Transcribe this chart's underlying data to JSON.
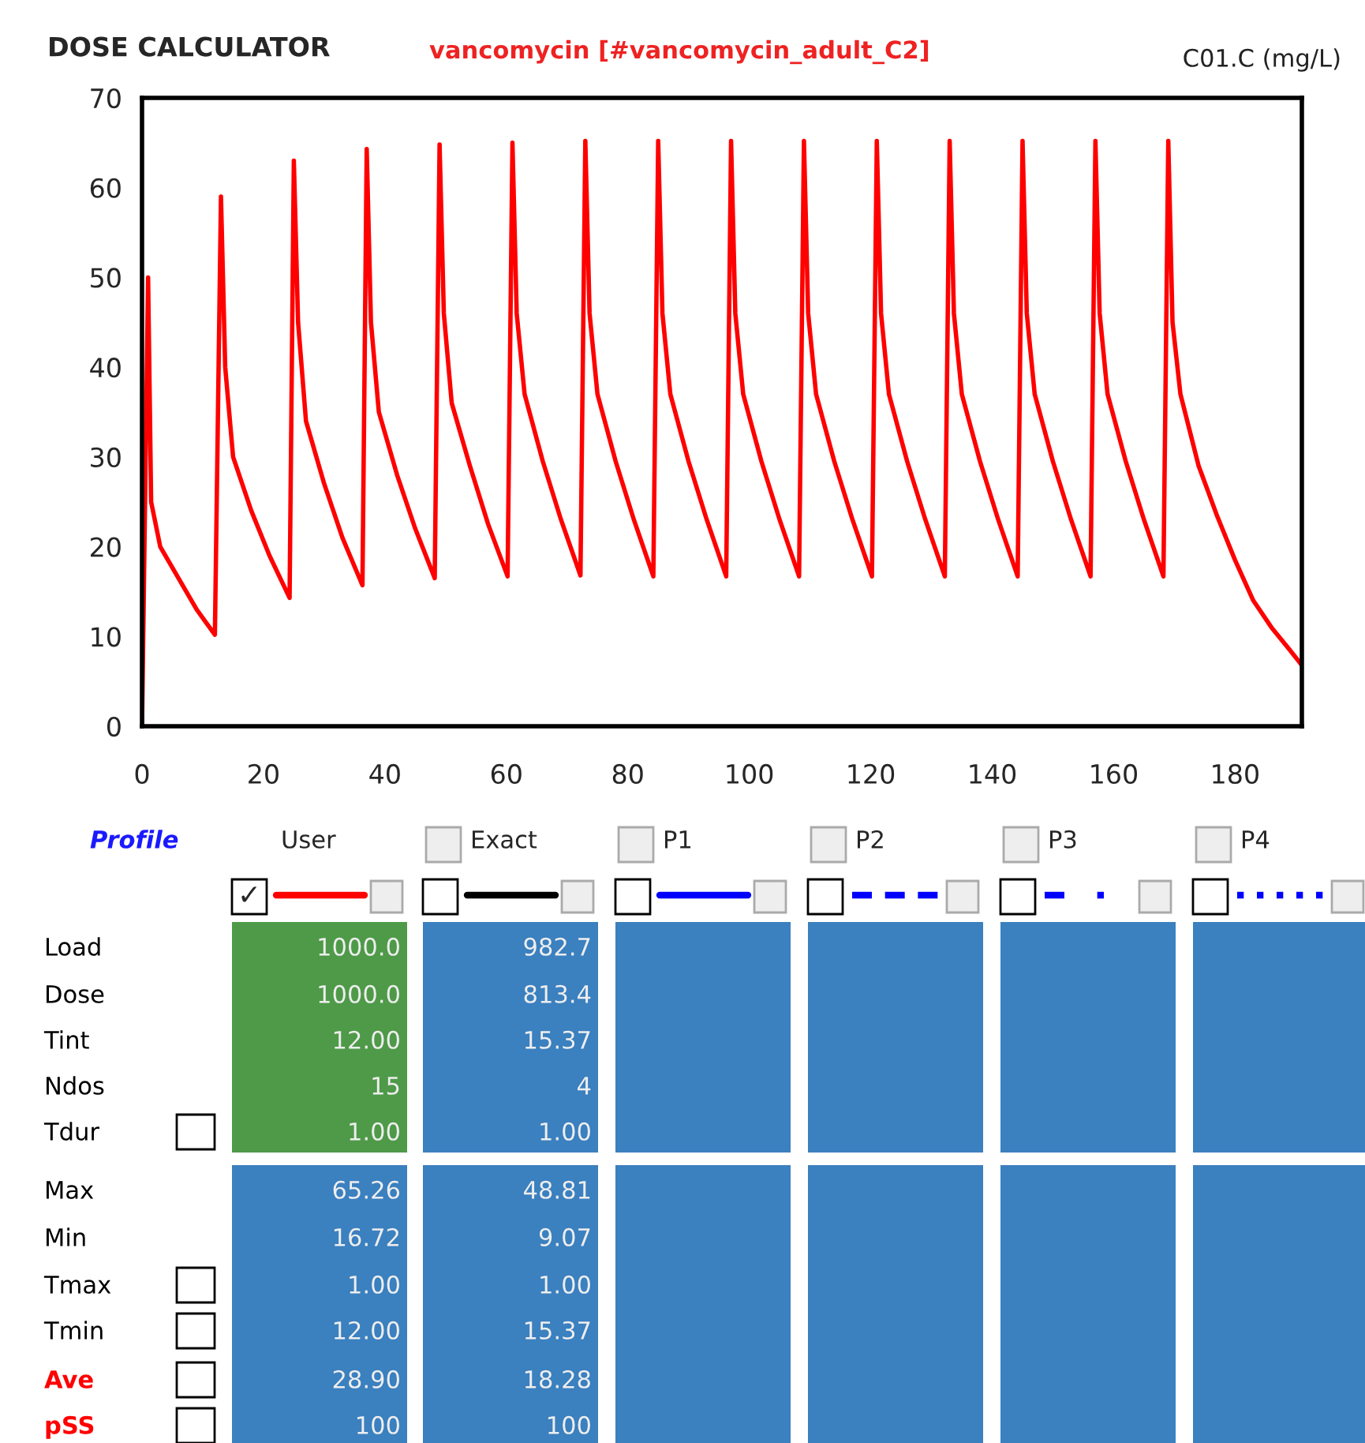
{
  "chart_data": {
    "type": "line",
    "title": "DOSE CALCULATOR",
    "subtitle": "vancomycin [#vancomycin_adult_C2]",
    "ylabel": "C01.C (mg/L)",
    "xlim": [
      0,
      191
    ],
    "ylim": [
      0,
      70
    ],
    "xticks": [
      0,
      20,
      40,
      60,
      80,
      100,
      120,
      140,
      160,
      180
    ],
    "yticks": [
      0,
      10,
      20,
      30,
      40,
      50,
      60,
      70
    ],
    "grid": false,
    "series": [
      {
        "color": "#ff0000",
        "x": [
          0,
          1,
          1.5,
          3,
          6,
          9,
          12,
          13,
          13.7,
          15,
          18,
          21,
          24.3,
          25,
          25.7,
          27,
          30,
          33,
          36.3,
          37,
          37.7,
          39,
          42,
          45,
          48.2,
          49,
          49.7,
          51,
          54,
          57,
          60.2,
          61,
          61.7,
          63,
          66,
          69,
          72.2,
          73,
          73.7,
          75,
          78,
          81,
          84.2,
          85,
          85.7,
          87,
          90,
          93,
          96.2,
          97,
          97.7,
          99,
          102,
          105,
          108.2,
          109,
          109.7,
          111,
          114,
          117,
          120.2,
          121,
          121.7,
          123,
          126,
          129,
          132.2,
          133,
          133.7,
          135,
          138,
          141,
          144.2,
          145,
          145.7,
          147,
          150,
          153,
          156.2,
          157,
          157.7,
          159,
          162,
          165,
          168.2,
          169,
          169.7,
          171,
          174,
          177,
          180,
          183,
          186,
          189,
          191
        ],
        "values": [
          0,
          50,
          25,
          20,
          16.5,
          13,
          10.2,
          59,
          40,
          30,
          24,
          19,
          14.3,
          63,
          45,
          34,
          27,
          21,
          15.7,
          64.3,
          45,
          35,
          28,
          22,
          16.5,
          64.8,
          46,
          36,
          29,
          22.5,
          16.7,
          65,
          46,
          37,
          29.5,
          23,
          16.8,
          65.2,
          46,
          37,
          29.5,
          23,
          16.7,
          65.2,
          46,
          37,
          29.5,
          23,
          16.7,
          65.2,
          46,
          37,
          29.5,
          23,
          16.7,
          65.2,
          46,
          37,
          29.5,
          23,
          16.7,
          65.2,
          46,
          37,
          29.5,
          23,
          16.7,
          65.2,
          46,
          37,
          29.5,
          23,
          16.7,
          65.2,
          46,
          37,
          29.5,
          23,
          16.7,
          65.2,
          46,
          37,
          29.5,
          23,
          16.7,
          65.2,
          45,
          37,
          29,
          23.5,
          18.5,
          14,
          11,
          8.5,
          6.8
        ]
      }
    ],
    "annotations": [
      "Profile",
      "User",
      "Exact",
      "P1",
      "P2",
      "P3",
      "P4",
      "Load",
      "Dose",
      "Tint",
      "Ndos",
      "Tdur",
      "Max",
      "Min",
      "Tmax",
      "Tmin",
      "Ave",
      "pSS",
      "1000.0",
      "1000.0",
      "12.00",
      "15",
      "1.00",
      "65.26",
      "16.72",
      "1.00",
      "12.00",
      "28.90",
      "100",
      "982.7",
      "813.4",
      "15.37",
      "4",
      "1.00",
      "48.81",
      "9.07",
      "1.00",
      "15.37",
      "18.28",
      "100",
      "✓"
    ]
  }
}
